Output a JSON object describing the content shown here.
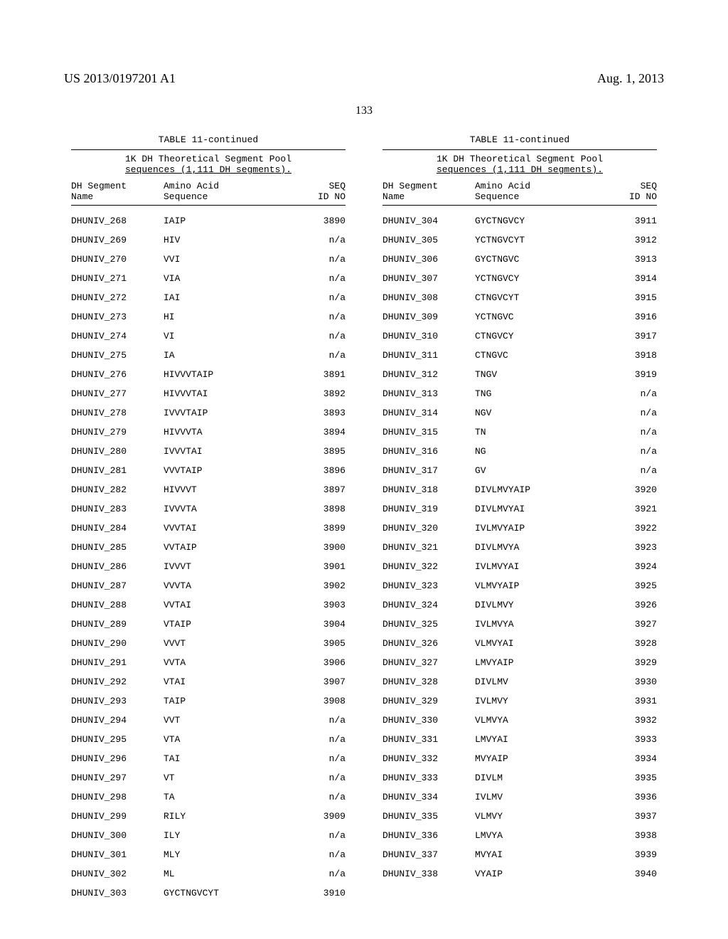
{
  "header": {
    "pub_number": "US 2013/0197201 A1",
    "pub_date": "Aug. 1, 2013"
  },
  "page_number": "133",
  "table_title": "TABLE 11-continued",
  "subtitle_line1": "1K DH Theoretical Segment Pool",
  "subtitle_line2": "sequences (1,111 DH segments).",
  "col_headers": {
    "c1a": "DH Segment",
    "c1b": "Name",
    "c2a": "Amino Acid",
    "c2b": "Sequence",
    "c3a": "SEQ",
    "c3b": "ID NO"
  },
  "left_rows": [
    {
      "name": "DHUNIV_268",
      "seq": "IAIP",
      "id": "3890"
    },
    {
      "name": "DHUNIV_269",
      "seq": "HIV",
      "id": "n/a"
    },
    {
      "name": "DHUNIV_270",
      "seq": "VVI",
      "id": "n/a"
    },
    {
      "name": "DHUNIV_271",
      "seq": "VIA",
      "id": "n/a"
    },
    {
      "name": "DHUNIV_272",
      "seq": "IAI",
      "id": "n/a"
    },
    {
      "name": "DHUNIV_273",
      "seq": "HI",
      "id": "n/a"
    },
    {
      "name": "DHUNIV_274",
      "seq": "VI",
      "id": "n/a"
    },
    {
      "name": "DHUNIV_275",
      "seq": "IA",
      "id": "n/a"
    },
    {
      "name": "DHUNIV_276",
      "seq": "HIVVVTAIP",
      "id": "3891"
    },
    {
      "name": "DHUNIV_277",
      "seq": "HIVVVTAI",
      "id": "3892"
    },
    {
      "name": "DHUNIV_278",
      "seq": "IVVVTAIP",
      "id": "3893"
    },
    {
      "name": "DHUNIV_279",
      "seq": "HIVVVTA",
      "id": "3894"
    },
    {
      "name": "DHUNIV_280",
      "seq": "IVVVTAI",
      "id": "3895"
    },
    {
      "name": "DHUNIV_281",
      "seq": "VVVTAIP",
      "id": "3896"
    },
    {
      "name": "DHUNIV_282",
      "seq": "HIVVVT",
      "id": "3897"
    },
    {
      "name": "DHUNIV_283",
      "seq": "IVVVTA",
      "id": "3898"
    },
    {
      "name": "DHUNIV_284",
      "seq": "VVVTAI",
      "id": "3899"
    },
    {
      "name": "DHUNIV_285",
      "seq": "VVTAIP",
      "id": "3900"
    },
    {
      "name": "DHUNIV_286",
      "seq": "IVVVT",
      "id": "3901"
    },
    {
      "name": "DHUNIV_287",
      "seq": "VVVTA",
      "id": "3902"
    },
    {
      "name": "DHUNIV_288",
      "seq": "VVTAI",
      "id": "3903"
    },
    {
      "name": "DHUNIV_289",
      "seq": "VTAIP",
      "id": "3904"
    },
    {
      "name": "DHUNIV_290",
      "seq": "VVVT",
      "id": "3905"
    },
    {
      "name": "DHUNIV_291",
      "seq": "VVTA",
      "id": "3906"
    },
    {
      "name": "DHUNIV_292",
      "seq": "VTAI",
      "id": "3907"
    },
    {
      "name": "DHUNIV_293",
      "seq": "TAIP",
      "id": "3908"
    },
    {
      "name": "DHUNIV_294",
      "seq": "VVT",
      "id": "n/a"
    },
    {
      "name": "DHUNIV_295",
      "seq": "VTA",
      "id": "n/a"
    },
    {
      "name": "DHUNIV_296",
      "seq": "TAI",
      "id": "n/a"
    },
    {
      "name": "DHUNIV_297",
      "seq": "VT",
      "id": "n/a"
    },
    {
      "name": "DHUNIV_298",
      "seq": "TA",
      "id": "n/a"
    },
    {
      "name": "DHUNIV_299",
      "seq": "RILY",
      "id": "3909"
    },
    {
      "name": "DHUNIV_300",
      "seq": "ILY",
      "id": "n/a"
    },
    {
      "name": "DHUNIV_301",
      "seq": "MLY",
      "id": "n/a"
    },
    {
      "name": "DHUNIV_302",
      "seq": "ML",
      "id": "n/a"
    },
    {
      "name": "DHUNIV_303",
      "seq": "GYCTNGVCYT",
      "id": "3910"
    }
  ],
  "right_rows": [
    {
      "name": "DHUNIV_304",
      "seq": "GYCTNGVCY",
      "id": "3911"
    },
    {
      "name": "DHUNIV_305",
      "seq": "YCTNGVCYT",
      "id": "3912"
    },
    {
      "name": "DHUNIV_306",
      "seq": "GYCTNGVC",
      "id": "3913"
    },
    {
      "name": "DHUNIV_307",
      "seq": "YCTNGVCY",
      "id": "3914"
    },
    {
      "name": "DHUNIV_308",
      "seq": "CTNGVCYT",
      "id": "3915"
    },
    {
      "name": "DHUNIV_309",
      "seq": "YCTNGVC",
      "id": "3916"
    },
    {
      "name": "DHUNIV_310",
      "seq": "CTNGVCY",
      "id": "3917"
    },
    {
      "name": "DHUNIV_311",
      "seq": "CTNGVC",
      "id": "3918"
    },
    {
      "name": "DHUNIV_312",
      "seq": "TNGV",
      "id": "3919"
    },
    {
      "name": "DHUNIV_313",
      "seq": "TNG",
      "id": "n/a"
    },
    {
      "name": "DHUNIV_314",
      "seq": "NGV",
      "id": "n/a"
    },
    {
      "name": "DHUNIV_315",
      "seq": "TN",
      "id": "n/a"
    },
    {
      "name": "DHUNIV_316",
      "seq": "NG",
      "id": "n/a"
    },
    {
      "name": "DHUNIV_317",
      "seq": "GV",
      "id": "n/a"
    },
    {
      "name": "DHUNIV_318",
      "seq": "DIVLMVYAIP",
      "id": "3920"
    },
    {
      "name": "DHUNIV_319",
      "seq": "DIVLMVYAI",
      "id": "3921"
    },
    {
      "name": "DHUNIV_320",
      "seq": "IVLMVYAIP",
      "id": "3922"
    },
    {
      "name": "DHUNIV_321",
      "seq": "DIVLMVYA",
      "id": "3923"
    },
    {
      "name": "DHUNIV_322",
      "seq": "IVLMVYAI",
      "id": "3924"
    },
    {
      "name": "DHUNIV_323",
      "seq": "VLMVYAIP",
      "id": "3925"
    },
    {
      "name": "DHUNIV_324",
      "seq": "DIVLMVY",
      "id": "3926"
    },
    {
      "name": "DHUNIV_325",
      "seq": "IVLMVYA",
      "id": "3927"
    },
    {
      "name": "DHUNIV_326",
      "seq": "VLMVYAI",
      "id": "3928"
    },
    {
      "name": "DHUNIV_327",
      "seq": "LMVYAIP",
      "id": "3929"
    },
    {
      "name": "DHUNIV_328",
      "seq": "DIVLMV",
      "id": "3930"
    },
    {
      "name": "DHUNIV_329",
      "seq": "IVLMVY",
      "id": "3931"
    },
    {
      "name": "DHUNIV_330",
      "seq": "VLMVYA",
      "id": "3932"
    },
    {
      "name": "DHUNIV_331",
      "seq": "LMVYAI",
      "id": "3933"
    },
    {
      "name": "DHUNIV_332",
      "seq": "MVYAIP",
      "id": "3934"
    },
    {
      "name": "DHUNIV_333",
      "seq": "DIVLM",
      "id": "3935"
    },
    {
      "name": "DHUNIV_334",
      "seq": "IVLMV",
      "id": "3936"
    },
    {
      "name": "DHUNIV_335",
      "seq": "VLMVY",
      "id": "3937"
    },
    {
      "name": "DHUNIV_336",
      "seq": "LMVYA",
      "id": "3938"
    },
    {
      "name": "DHUNIV_337",
      "seq": "MVYAI",
      "id": "3939"
    },
    {
      "name": "DHUNIV_338",
      "seq": "VYAIP",
      "id": "3940"
    }
  ]
}
